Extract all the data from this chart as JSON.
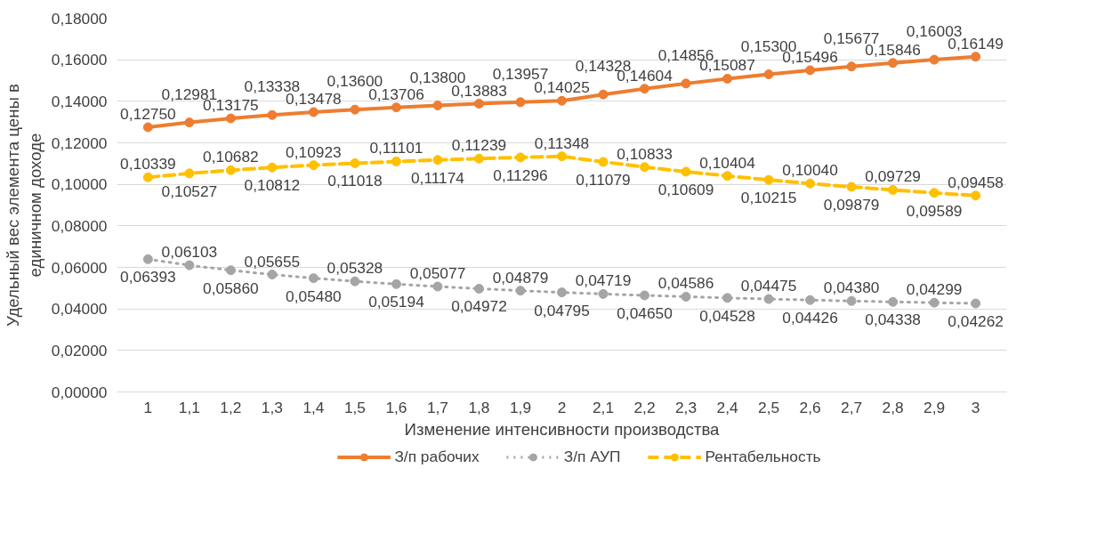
{
  "chart_data": {
    "type": "line",
    "xlabel": "Изменение интенсивности производства",
    "ylabel": "Удельный вес элемента цены в единичном доходе",
    "categories": [
      "1",
      "1,1",
      "1,2",
      "1,3",
      "1,4",
      "1,5",
      "1,6",
      "1,7",
      "1,8",
      "1,9",
      "2",
      "2,1",
      "2,2",
      "2,3",
      "2,4",
      "2,5",
      "2,6",
      "2,7",
      "2,8",
      "2,9",
      "3"
    ],
    "series": [
      {
        "name": "З/п рабочих",
        "color": "#ed7d31",
        "line_style": "solid",
        "marker": "circle",
        "values": [
          0.1275,
          0.12981,
          0.13175,
          0.13338,
          0.13478,
          0.136,
          0.13706,
          0.138,
          0.13883,
          0.13957,
          0.14025,
          0.14328,
          0.14604,
          0.14856,
          0.15087,
          0.153,
          0.15496,
          0.15677,
          0.15846,
          0.16003,
          0.16149
        ],
        "value_labels": [
          "0,12750",
          "0,12981",
          "0,13175",
          "0,13338",
          "0,13478",
          "0,13600",
          "0,13706",
          "0,13800",
          "0,13883",
          "0,13957",
          "0,14025",
          "0,14328",
          "0,14604",
          "0,14856",
          "0,15087",
          "0,15300",
          "0,15496",
          "0,15677",
          "0,15846",
          "0,16003",
          "0,16149"
        ]
      },
      {
        "name": "З/п АУП",
        "color": "#a5a5a5",
        "line_style": "dotted",
        "marker": "circle",
        "values": [
          0.06393,
          0.06103,
          0.0586,
          0.05655,
          0.0548,
          0.05328,
          0.05194,
          0.05077,
          0.04972,
          0.04879,
          0.04795,
          0.04719,
          0.0465,
          0.04586,
          0.04528,
          0.04475,
          0.04426,
          0.0438,
          0.04338,
          0.04299,
          0.04262
        ],
        "value_labels": [
          "0,06393",
          "0,06103",
          "0,05860",
          "0,05655",
          "0,05480",
          "0,05328",
          "0,05194",
          "0,05077",
          "0,04972",
          "0,04879",
          "0,04795",
          "0,04719",
          "0,04650",
          "0,04586",
          "0,04528",
          "0,04475",
          "0,04426",
          "0,04380",
          "0,04338",
          "0,04299",
          "0,04262"
        ]
      },
      {
        "name": "Рентабельность",
        "color": "#ffc000",
        "line_style": "dashed",
        "marker": "circle",
        "values": [
          0.10339,
          0.10527,
          0.10682,
          0.10812,
          0.10923,
          0.11018,
          0.11101,
          0.11174,
          0.11239,
          0.11296,
          0.11348,
          0.11079,
          0.10833,
          0.10609,
          0.10404,
          0.10215,
          0.1004,
          0.09879,
          0.09729,
          0.09589,
          0.09458
        ],
        "value_labels": [
          "0,10339",
          "0,10527",
          "0,10682",
          "0,10812",
          "0,10923",
          "0,11018",
          "0,11101",
          "0,11174",
          "0,11239",
          "0,11296",
          "0,11348",
          "0,11079",
          "0,10833",
          "0,10609",
          "0,10404",
          "0,10215",
          "0,10040",
          "0,09879",
          "0,09729",
          "0,09589",
          "0,09458"
        ]
      }
    ],
    "ylim": [
      0,
      0.18
    ],
    "yticks": [
      {
        "value": 0,
        "label": "0,00000"
      },
      {
        "value": 0.02,
        "label": "0,02000"
      },
      {
        "value": 0.04,
        "label": "0,04000"
      },
      {
        "value": 0.06,
        "label": "0,06000"
      },
      {
        "value": 0.08,
        "label": "0,08000"
      },
      {
        "value": 0.1,
        "label": "0,10000"
      },
      {
        "value": 0.12,
        "label": "0,12000"
      },
      {
        "value": 0.14,
        "label": "0,14000"
      },
      {
        "value": 0.16,
        "label": "0,16000"
      },
      {
        "value": 0.18,
        "label": "0,18000"
      }
    ],
    "grid": "y",
    "legend": "bottom"
  }
}
